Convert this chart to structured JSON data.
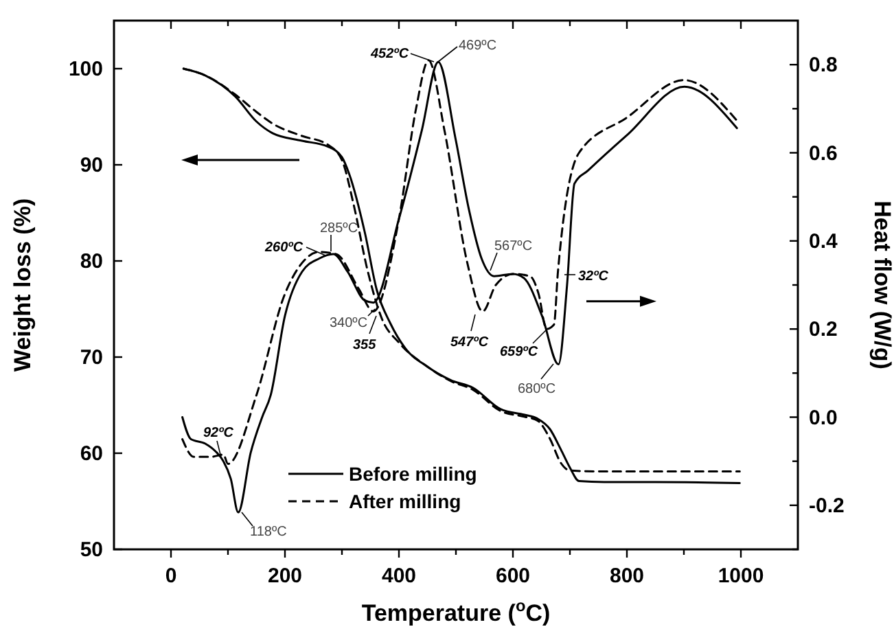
{
  "chart_data": {
    "type": "line",
    "xlabel": "Temperature ($^{o}$C)",
    "ylabel": "Weight loss (%)",
    "y2label": "Heat flow (W/g)",
    "xlim": [
      -100,
      1100
    ],
    "xticks": [
      0,
      {
        "value": 100,
        "label": null
      },
      200,
      {
        "value": 300,
        "label": null
      },
      400,
      {
        "value": 500,
        "label": null
      },
      600,
      {
        "value": 700,
        "label": null
      },
      800,
      {
        "value": 900,
        "label": null
      },
      1000
    ],
    "ylim": [
      50,
      105
    ],
    "yticks": [
      50,
      60,
      70,
      80,
      90,
      100
    ],
    "y2lim": [
      -0.3,
      0.9
    ],
    "y2ticks": [
      {
        "value": -0.3,
        "label": null
      },
      -0.2,
      {
        "value": -0.1,
        "label": null
      },
      {
        "value": 0,
        "label": "0.0"
      },
      {
        "value": 0.1,
        "label": null
      },
      0.2,
      {
        "value": 0.3,
        "label": null
      },
      0.4,
      {
        "value": 0.5,
        "label": null
      },
      0.6,
      {
        "value": 0.7,
        "label": null
      },
      0.8
    ],
    "grid": false,
    "legend": "bottom",
    "series": [
      {
        "name": "Before milling",
        "color": "#000000",
        "line_style": "solid",
        "x": [
          22,
          60,
          113,
          150,
          178,
          230,
          275,
          300,
          313,
          340,
          361,
          385,
          410,
          450,
          491,
          530,
          578,
          620,
          643,
          665,
          684,
          700,
          716,
          760,
          850,
          998
        ],
        "values": [
          100,
          99.3,
          97.1,
          94.5,
          93.3,
          92.5,
          91.9,
          90.8,
          89,
          83,
          77,
          73.5,
          71,
          69,
          67.6,
          66.8,
          64.6,
          64,
          63.6,
          62.5,
          60.4,
          58.5,
          57.1,
          57,
          57,
          56.9
        ]
      },
      {
        "name": "After milling",
        "color": "#000000",
        "line_style": "dashed",
        "x": [
          22,
          60,
          113,
          150,
          178,
          230,
          275,
          300,
          320,
          345,
          370,
          400,
          450,
          491,
          530,
          578,
          620,
          643,
          665,
          684,
          700,
          760,
          850,
          998
        ],
        "values": [
          100,
          99.3,
          97.3,
          95.5,
          94.3,
          93,
          92.1,
          90.5,
          86,
          79,
          74,
          71.5,
          69,
          67.5,
          66.6,
          64.4,
          63.8,
          63.4,
          61.5,
          59,
          58.2,
          58.1,
          58.1,
          58.1
        ]
      },
      {
        "color": "#000000",
        "line_style": "solid",
        "axis": "y2",
        "x": [
          20,
          35,
          60,
          80,
          92,
          105,
          118,
          140,
          160,
          175,
          200,
          230,
          260,
          285,
          310,
          340,
          355,
          400,
          440,
          469,
          499,
          523,
          545,
          567,
          600,
          619,
          651,
          680,
          695,
          708,
          732,
          800,
          901,
          993
        ],
        "values": [
          0.0,
          -0.05,
          -0.06,
          -0.08,
          -0.1,
          -0.14,
          -0.216,
          -0.08,
          0.0,
          0.05,
          0.23,
          0.33,
          0.36,
          0.37,
          0.33,
          0.265,
          0.26,
          0.45,
          0.65,
          0.806,
          0.634,
          0.47,
          0.36,
          0.32,
          0.325,
          0.316,
          0.23,
          0.12,
          0.3,
          0.53,
          0.56,
          0.64,
          0.75,
          0.656
        ]
      },
      {
        "color": "#000000",
        "line_style": "dashed",
        "axis": "y2",
        "x": [
          20,
          40,
          70,
          92,
          100,
          150,
          200,
          230,
          260,
          290,
          330,
          355,
          400,
          430,
          452,
          480,
          520,
          547,
          570,
          600,
          630,
          645,
          659,
          672,
          679,
          716,
          800,
          900,
          995
        ],
        "values": [
          -0.05,
          -0.09,
          -0.09,
          -0.085,
          -0.106,
          0.05,
          0.28,
          0.35,
          0.375,
          0.37,
          0.29,
          0.24,
          0.45,
          0.7,
          0.81,
          0.65,
          0.35,
          0.24,
          0.3,
          0.325,
          0.32,
          0.28,
          0.2,
          0.21,
          0.33,
          0.6,
          0.68,
          0.765,
          0.67
        ]
      }
    ],
    "annotations": [
      "452ºC",
      "469ºC",
      "260ºC",
      "285ºC",
      "340ºC",
      "355",
      "567ºC",
      "547ºC",
      "32ºC",
      "659ºC",
      "680ºC",
      "92ºC",
      "118ºC"
    ]
  }
}
